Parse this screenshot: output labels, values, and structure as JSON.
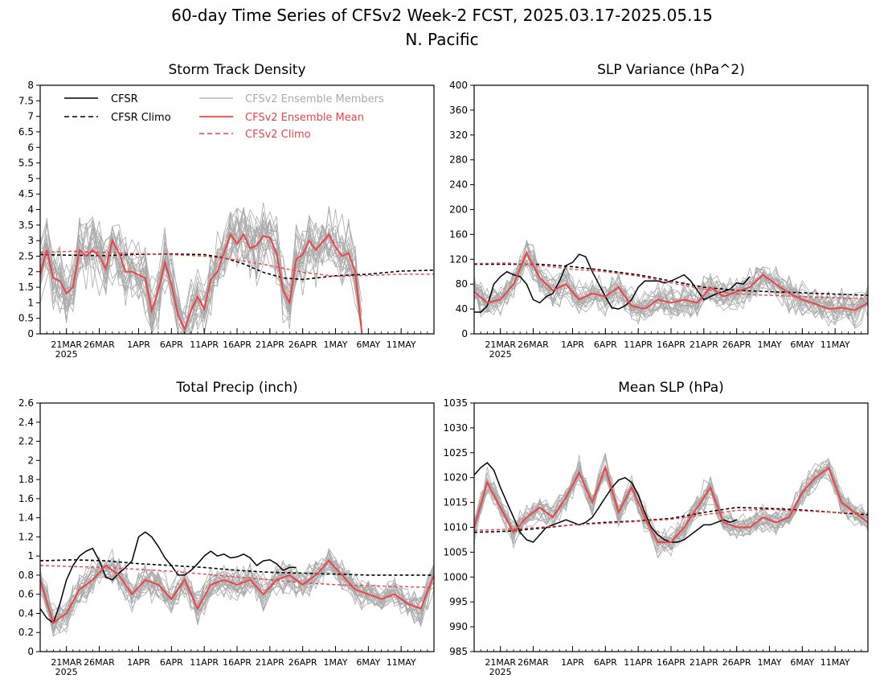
{
  "figure": {
    "title_line1": "60-day Time Series of CFSv2 Week-2 FCST, 2025.03.17-2025.05.15",
    "title_line2": "N. Pacific"
  },
  "legend": {
    "cfsr": "CFSR",
    "cfsr_climo": "CFSR Climo",
    "members": "CFSv2 Ensemble Members",
    "ens_mean": "CFSv2 Ensemble Mean",
    "cfsv2_climo": "CFSv2 Climo",
    "colors": {
      "cfsr": "#000000",
      "members": "#aaaaaa",
      "mean": "#ee4444"
    }
  },
  "x_axis": {
    "day_range": [
      0,
      60
    ],
    "ticks": [
      {
        "day": 4,
        "label": "21MAR"
      },
      {
        "day": 9,
        "label": "26MAR"
      },
      {
        "day": 15,
        "label": "1APR"
      },
      {
        "day": 20,
        "label": "6APR"
      },
      {
        "day": 25,
        "label": "11APR"
      },
      {
        "day": 30,
        "label": "16APR"
      },
      {
        "day": 35,
        "label": "21APR"
      },
      {
        "day": 40,
        "label": "26APR"
      },
      {
        "day": 45,
        "label": "1MAY"
      },
      {
        "day": 50,
        "label": "6MAY"
      },
      {
        "day": 55,
        "label": "11MAY"
      }
    ],
    "year_label": "2025"
  },
  "chart_data": [
    {
      "type": "line",
      "title": "Storm Track Density",
      "xlabel": "",
      "ylabel": "",
      "ylim": [
        0,
        8
      ],
      "yticks": [
        "0",
        "0.5",
        "1",
        "1.5",
        "2",
        "2.5",
        "3",
        "3.5",
        "4",
        "4.5",
        "5",
        "5.5",
        "6",
        "6.5",
        "7",
        "7.5",
        "8"
      ],
      "legend_placement": "top-left",
      "series": [
        {
          "name": "CFSR Climo",
          "x": [
            0,
            5,
            10,
            15,
            20,
            25,
            28,
            31,
            34,
            37,
            40,
            45,
            50,
            55,
            60
          ],
          "y": [
            2.55,
            2.53,
            2.52,
            2.56,
            2.57,
            2.55,
            2.45,
            2.25,
            1.98,
            1.8,
            1.75,
            1.87,
            1.92,
            2.02,
            2.05
          ]
        },
        {
          "name": "CFSv2 Climo",
          "x": [
            0,
            5,
            10,
            15,
            20,
            25,
            30,
            35,
            40,
            45,
            50,
            55,
            60
          ],
          "y": [
            2.62,
            2.66,
            2.62,
            2.58,
            2.55,
            2.5,
            2.38,
            2.2,
            1.98,
            1.85,
            1.88,
            1.92,
            1.92
          ]
        },
        {
          "name": "CFSv2 Ensemble Mean",
          "x": [
            0,
            1,
            2,
            3,
            4,
            5,
            6,
            7,
            8,
            9,
            10,
            11,
            12,
            13,
            14,
            15,
            16,
            17,
            18,
            19,
            20,
            21,
            22,
            23,
            24,
            25,
            26,
            27,
            28,
            29,
            30,
            31,
            32,
            33,
            34,
            35,
            36,
            37,
            38,
            39,
            40,
            41,
            42,
            43,
            44,
            45,
            46,
            47,
            48,
            49,
            50,
            51,
            52
          ],
          "y": [
            1.9,
            2.7,
            1.8,
            1.7,
            1.3,
            1.5,
            2.7,
            2.5,
            2.7,
            2.5,
            2.1,
            3.0,
            2.6,
            2.0,
            2.0,
            1.9,
            1.8,
            0.75,
            1.4,
            2.3,
            1.6,
            0.6,
            0.15,
            0.75,
            1.2,
            0.8,
            1.75,
            2.0,
            2.6,
            3.2,
            2.9,
            3.2,
            2.75,
            2.85,
            3.15,
            3.1,
            2.6,
            1.4,
            1.0,
            2.4,
            2.55,
            3.0,
            2.7,
            2.95,
            3.2,
            2.8,
            2.5,
            2.6,
            2.0,
            0.05,
            null,
            null,
            null
          ]
        }
      ]
    },
    {
      "type": "line",
      "title": "SLP Variance (hPa^2)",
      "xlabel": "",
      "ylabel": "",
      "ylim": [
        0,
        400
      ],
      "yticks": [
        "0",
        "40",
        "80",
        "120",
        "160",
        "200",
        "240",
        "280",
        "320",
        "360",
        "400"
      ],
      "series": [
        {
          "name": "CFSR",
          "x": [
            0,
            1,
            2,
            3,
            4,
            5,
            6,
            7,
            8,
            9,
            10,
            11,
            12,
            13,
            14,
            15,
            16,
            17,
            18,
            19,
            20,
            21,
            22,
            23,
            24,
            25,
            26,
            27,
            28,
            29,
            30,
            31,
            32,
            33,
            34,
            35,
            36,
            37,
            38,
            39,
            40,
            41,
            42,
            43,
            44
          ],
          "y": [
            35,
            35,
            45,
            80,
            92,
            100,
            95,
            92,
            80,
            55,
            50,
            60,
            65,
            85,
            110,
            115,
            128,
            124,
            100,
            80,
            60,
            42,
            40,
            45,
            55,
            75,
            85,
            85,
            85,
            82,
            85,
            90,
            95,
            85,
            70,
            55,
            60,
            65,
            68,
            72,
            82,
            80,
            92,
            null,
            null
          ]
        },
        {
          "name": "CFSR Climo",
          "x": [
            0,
            5,
            10,
            15,
            20,
            25,
            30,
            35,
            40,
            45,
            50,
            55,
            60
          ],
          "y": [
            112,
            112,
            112,
            108,
            102,
            95,
            85,
            75,
            70,
            68,
            66,
            64,
            62
          ]
        },
        {
          "name": "CFSv2 Climo",
          "x": [
            0,
            5,
            10,
            15,
            20,
            25,
            30,
            35,
            40,
            45,
            50,
            55,
            60
          ],
          "y": [
            113,
            114,
            110,
            104,
            100,
            93,
            82,
            72,
            64,
            62,
            60,
            58,
            56
          ]
        },
        {
          "name": "CFSv2 Ensemble Mean",
          "x": [
            0,
            2,
            4,
            6,
            8,
            10,
            12,
            14,
            16,
            18,
            20,
            22,
            24,
            26,
            28,
            30,
            32,
            34,
            36,
            38,
            40,
            42,
            44,
            46,
            48,
            50,
            52,
            54,
            56,
            58,
            60
          ],
          "y": [
            68,
            50,
            55,
            80,
            130,
            90,
            70,
            80,
            55,
            65,
            60,
            75,
            45,
            40,
            55,
            50,
            55,
            50,
            75,
            60,
            68,
            75,
            95,
            80,
            65,
            55,
            48,
            40,
            42,
            38,
            50
          ]
        }
      ]
    },
    {
      "type": "line",
      "title": "Total Precip (inch)",
      "xlabel": "",
      "ylabel": "",
      "ylim": [
        0,
        2.6
      ],
      "yticks": [
        "0",
        "0.2",
        "0.4",
        "0.6",
        "0.8",
        "1",
        "1.2",
        "1.4",
        "1.6",
        "1.8",
        "2",
        "2.2",
        "2.4",
        "2.6"
      ],
      "series": [
        {
          "name": "CFSR",
          "x": [
            0,
            1,
            2,
            3,
            4,
            5,
            6,
            7,
            8,
            9,
            10,
            11,
            12,
            13,
            14,
            15,
            16,
            17,
            18,
            19,
            20,
            21,
            22,
            23,
            24,
            25,
            26,
            27,
            28,
            29,
            30,
            31,
            32,
            33,
            34,
            35,
            36,
            37,
            38,
            39,
            40,
            41,
            42,
            43,
            44
          ],
          "y": [
            0.45,
            0.35,
            0.3,
            0.5,
            0.75,
            0.9,
            1.0,
            1.05,
            1.08,
            0.95,
            0.78,
            0.75,
            0.82,
            0.88,
            0.95,
            1.2,
            1.25,
            1.2,
            1.1,
            0.98,
            0.9,
            0.8,
            0.8,
            0.85,
            0.92,
            1.0,
            1.05,
            1.0,
            1.02,
            0.98,
            0.99,
            1.02,
            0.98,
            0.9,
            0.95,
            0.96,
            0.92,
            0.85,
            0.88,
            0.88,
            null,
            null,
            null,
            null,
            null
          ]
        },
        {
          "name": "CFSR Climo",
          "x": [
            0,
            5,
            10,
            15,
            20,
            25,
            30,
            35,
            40,
            45,
            50,
            55,
            60
          ],
          "y": [
            0.95,
            0.96,
            0.95,
            0.92,
            0.9,
            0.88,
            0.85,
            0.83,
            0.82,
            0.81,
            0.8,
            0.8,
            0.8
          ]
        },
        {
          "name": "CFSv2 Climo",
          "x": [
            0,
            5,
            10,
            15,
            20,
            25,
            30,
            35,
            40,
            45,
            50,
            55,
            60
          ],
          "y": [
            0.9,
            0.89,
            0.88,
            0.86,
            0.84,
            0.81,
            0.78,
            0.75,
            0.72,
            0.7,
            0.69,
            0.68,
            0.67
          ]
        },
        {
          "name": "CFSv2 Ensemble Mean",
          "x": [
            0,
            2,
            4,
            6,
            8,
            10,
            12,
            14,
            16,
            18,
            20,
            22,
            24,
            26,
            28,
            30,
            32,
            34,
            36,
            38,
            40,
            42,
            44,
            46,
            48,
            50,
            52,
            54,
            56,
            58,
            60
          ],
          "y": [
            0.75,
            0.3,
            0.4,
            0.65,
            0.75,
            0.9,
            0.8,
            0.6,
            0.75,
            0.7,
            0.55,
            0.75,
            0.45,
            0.7,
            0.75,
            0.7,
            0.75,
            0.6,
            0.75,
            0.8,
            0.7,
            0.8,
            0.95,
            0.8,
            0.65,
            0.6,
            0.55,
            0.6,
            0.5,
            0.45,
            0.8
          ]
        }
      ]
    },
    {
      "type": "line",
      "title": "Mean SLP (hPa)",
      "xlabel": "",
      "ylabel": "",
      "ylim": [
        985,
        1035
      ],
      "yticks": [
        "985",
        "990",
        "995",
        "1000",
        "1005",
        "1010",
        "1015",
        "1020",
        "1025",
        "1030",
        "1035"
      ],
      "series": [
        {
          "name": "CFSR",
          "x": [
            0,
            1,
            2,
            3,
            4,
            5,
            6,
            7,
            8,
            9,
            10,
            11,
            12,
            13,
            14,
            15,
            16,
            17,
            18,
            19,
            20,
            21,
            22,
            23,
            24,
            25,
            26,
            27,
            28,
            29,
            30,
            31,
            32,
            33,
            34,
            35,
            36,
            37,
            38,
            39,
            40,
            41,
            42,
            43,
            44
          ],
          "y": [
            1020.5,
            1022,
            1023,
            1021.5,
            1018,
            1015,
            1012,
            1009,
            1007.5,
            1007,
            1008.5,
            1010,
            1010.5,
            1011,
            1011.5,
            1011,
            1010.5,
            1011,
            1012,
            1014,
            1016,
            1018,
            1019.5,
            1020,
            1019,
            1016.5,
            1013,
            1010,
            1008.5,
            1007.5,
            1007,
            1007,
            1007.5,
            1008.5,
            1009.5,
            1010.5,
            1010.5,
            1011,
            1011.5,
            1011,
            1011.5,
            null,
            null,
            null,
            null
          ]
        },
        {
          "name": "CFSR Climo",
          "x": [
            0,
            5,
            10,
            15,
            20,
            25,
            30,
            35,
            40,
            45,
            50,
            55,
            60
          ],
          "y": [
            1009,
            1009.2,
            1009.8,
            1010.5,
            1011,
            1011.3,
            1011.8,
            1013,
            1014,
            1013.8,
            1013.5,
            1013,
            1012.5
          ]
        },
        {
          "name": "CFSv2 Climo",
          "x": [
            0,
            5,
            10,
            15,
            20,
            25,
            30,
            35,
            40,
            45,
            50,
            55,
            60
          ],
          "y": [
            1009.4,
            1009.6,
            1010,
            1010.5,
            1010.8,
            1011.2,
            1011.6,
            1012.5,
            1013.4,
            1013.6,
            1013.3,
            1013,
            1012.8
          ]
        },
        {
          "name": "CFSv2 Ensemble Mean",
          "x": [
            0,
            2,
            4,
            6,
            8,
            10,
            12,
            14,
            16,
            18,
            20,
            22,
            24,
            26,
            28,
            30,
            32,
            34,
            36,
            38,
            40,
            42,
            44,
            46,
            48,
            50,
            52,
            54,
            56,
            58,
            60
          ],
          "y": [
            1010,
            1019,
            1014,
            1009,
            1012,
            1014,
            1012,
            1016,
            1021,
            1015,
            1022,
            1013,
            1018,
            1012,
            1007,
            1007,
            1010,
            1014,
            1018,
            1011,
            1010,
            1010,
            1012,
            1011,
            1012,
            1017,
            1020,
            1022,
            1015,
            1013,
            1011
          ]
        }
      ]
    }
  ]
}
